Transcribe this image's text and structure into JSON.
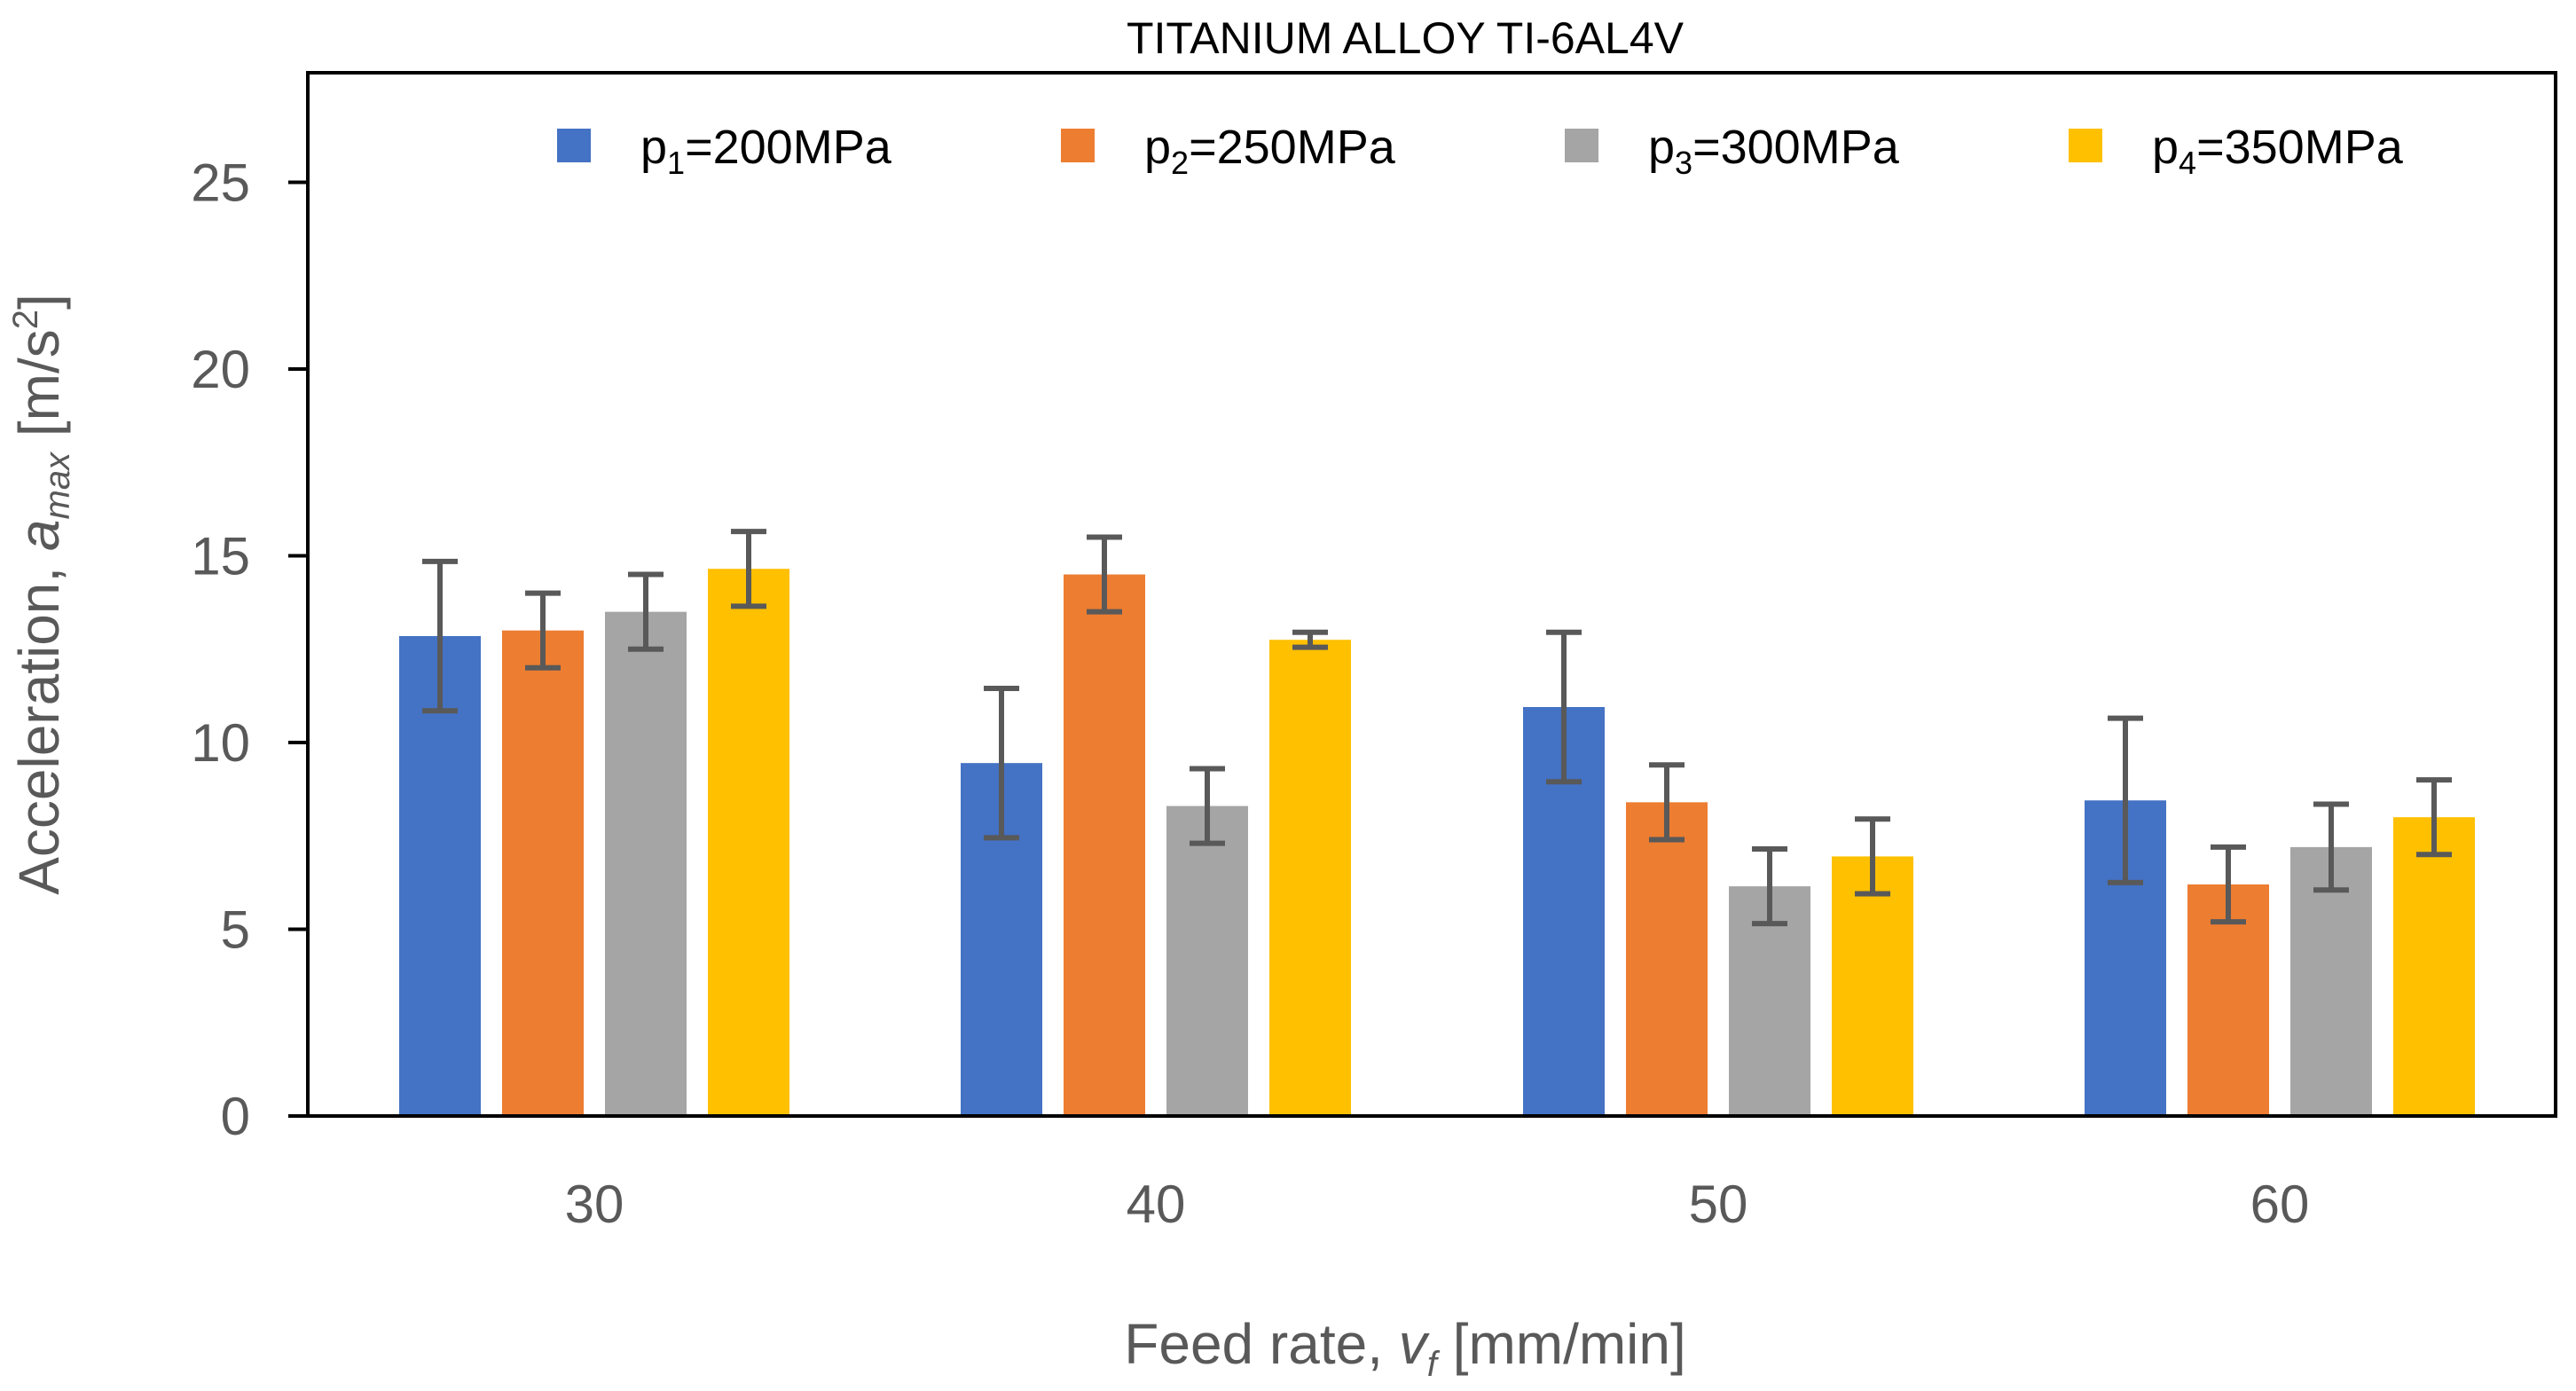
{
  "chart_data": {
    "type": "bar",
    "title": "TITANIUM ALLOY TI-6AL4V",
    "xlabel": {
      "prefix": "Feed rate, ",
      "symbol": "v",
      "subscript": "f",
      "suffix": " [mm/min]"
    },
    "ylabel": {
      "prefix": "Acceleration, ",
      "symbol": "a",
      "subscript": "max",
      "unit_open": " [m/s",
      "superscript": "2",
      "unit_close": "]"
    },
    "categories": [
      "30",
      "40",
      "50",
      "60"
    ],
    "ylim": [
      0,
      27.5
    ],
    "yticks": [
      0,
      5,
      10,
      15,
      20,
      25
    ],
    "grid": false,
    "legend_position": "top",
    "series": [
      {
        "name": "p1=200MPa",
        "legend": {
          "base": "p",
          "sub": "1",
          "rest": "=200MPa"
        },
        "color": "#4472C4",
        "values": [
          12.85,
          9.45,
          10.95,
          8.45
        ],
        "errors": [
          2.0,
          2.0,
          2.0,
          2.2
        ]
      },
      {
        "name": "p2=250MPa",
        "legend": {
          "base": "p",
          "sub": "2",
          "rest": "=250MPa"
        },
        "color": "#ED7D31",
        "values": [
          13.0,
          14.5,
          8.4,
          6.2
        ],
        "errors": [
          1.0,
          1.0,
          1.0,
          1.0
        ]
      },
      {
        "name": "p3=300MPa",
        "legend": {
          "base": "p",
          "sub": "3",
          "rest": "=300MPa"
        },
        "color": "#A5A5A5",
        "values": [
          13.5,
          8.3,
          6.15,
          7.2
        ],
        "errors": [
          1.0,
          1.0,
          1.0,
          1.15
        ]
      },
      {
        "name": "p4=350MPa",
        "legend": {
          "base": "p",
          "sub": "4",
          "rest": "=350MPa"
        },
        "color": "#FFC000",
        "values": [
          14.65,
          12.75,
          6.95,
          8.0
        ],
        "errors": [
          1.0,
          0.2,
          1.0,
          1.0
        ]
      }
    ]
  }
}
